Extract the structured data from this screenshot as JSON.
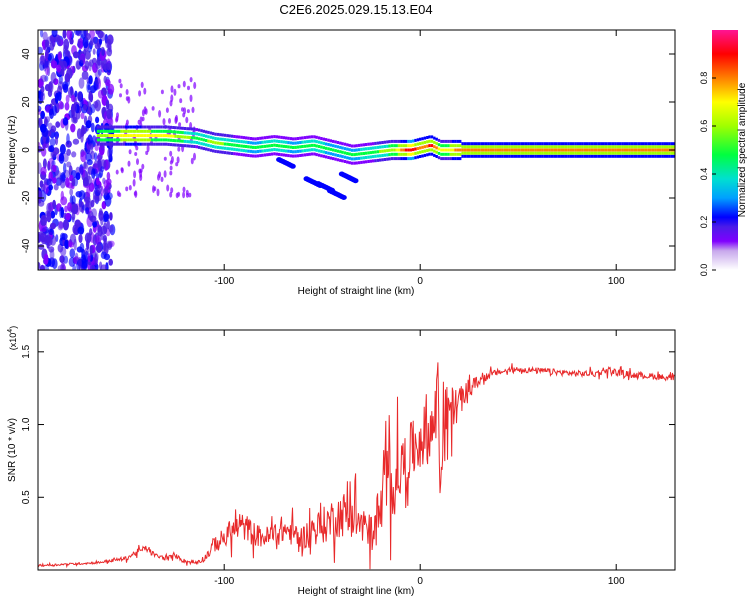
{
  "title": "C2E6.2025.029.15.13.E04",
  "colors": {
    "snr_line": "#e8292a",
    "colormap": [
      "#ffffff",
      "#c8a8ec",
      "#8000ff",
      "#4b1ce8",
      "#0000ff",
      "#00a0ff",
      "#00e0d0",
      "#00ff40",
      "#a0ff00",
      "#ffff00",
      "#ff8000",
      "#ff0000",
      "#ff1493"
    ]
  },
  "chart_data": [
    {
      "type": "heatmap",
      "xlabel": "Height of straight line (km)",
      "ylabel": "Frequency (Hz)",
      "xlim": [
        -195,
        130
      ],
      "ylim": [
        -50,
        50
      ],
      "xticks": [
        {
          "value": -100,
          "label": "-100"
        },
        {
          "value": 0,
          "label": "0"
        },
        {
          "value": 100,
          "label": "100"
        }
      ],
      "yticks": [
        {
          "value": -40,
          "label": "-40"
        },
        {
          "value": -20,
          "label": "-20"
        },
        {
          "value": 0,
          "label": "0"
        },
        {
          "value": 20,
          "label": "20"
        },
        {
          "value": 40,
          "label": "40"
        }
      ],
      "colorbar": {
        "label": "Normalized spectral amplitude",
        "range": [
          0,
          1
        ],
        "ticks": [
          {
            "value": 0.0,
            "label": "0.0"
          },
          {
            "value": 0.2,
            "label": "0.2"
          },
          {
            "value": 0.4,
            "label": "0.4"
          },
          {
            "value": 0.6,
            "label": "0.6"
          },
          {
            "value": 0.8,
            "label": "0.8"
          }
        ]
      },
      "ridge": {
        "x": [
          -165,
          -150,
          -130,
          -115,
          -105,
          -95,
          -85,
          -75,
          -65,
          -55,
          -45,
          -35,
          -25,
          -15,
          -5,
          0,
          5,
          10,
          20,
          40,
          60,
          80,
          100,
          120,
          130
        ],
        "freq": [
          6,
          6,
          6,
          5,
          3,
          2,
          1,
          2,
          1,
          2,
          0,
          -2,
          -1,
          0,
          0,
          1,
          2,
          0,
          0,
          0,
          0,
          0,
          0,
          0,
          0
        ],
        "amplitude": [
          0.55,
          0.7,
          0.65,
          0.45,
          0.5,
          0.45,
          0.4,
          0.45,
          0.4,
          0.45,
          0.4,
          0.4,
          0.45,
          0.55,
          0.9,
          0.7,
          0.85,
          0.6,
          0.75,
          0.75,
          0.75,
          0.75,
          0.75,
          0.75,
          0.75
        ]
      }
    },
    {
      "type": "line",
      "xlabel": "Height of straight line (km)",
      "ylabel": "SNR (10 * v/v)",
      "scale_label": "(x10",
      "scale_exponent": "4",
      "xlim": [
        -195,
        130
      ],
      "ylim": [
        0,
        1.65
      ],
      "xticks": [
        {
          "value": -100,
          "label": "-100"
        },
        {
          "value": 0,
          "label": "0"
        },
        {
          "value": 100,
          "label": "100"
        }
      ],
      "yticks": [
        {
          "value": 0.5,
          "label": "0.5"
        },
        {
          "value": 1.0,
          "label": "1.0"
        },
        {
          "value": 1.5,
          "label": "1.5"
        }
      ],
      "series": [
        {
          "x": [
            -195,
            -180,
            -165,
            -150,
            -145,
            -140,
            -135,
            -130,
            -125,
            -120,
            -115,
            -110,
            -105,
            -100,
            -95,
            -90,
            -85,
            -80,
            -75,
            -70,
            -65,
            -60,
            -55,
            -50,
            -45,
            -40,
            -35,
            -30,
            -25,
            -20,
            -18,
            -15,
            -12,
            -10,
            -5,
            0,
            5,
            8,
            9,
            10,
            12,
            15,
            20,
            25,
            30,
            35,
            40,
            50,
            60,
            70,
            80,
            90,
            95,
            100,
            110,
            120,
            130
          ],
          "y": [
            0.03,
            0.04,
            0.05,
            0.08,
            0.12,
            0.15,
            0.1,
            0.08,
            0.1,
            0.06,
            0.05,
            0.08,
            0.18,
            0.22,
            0.28,
            0.3,
            0.25,
            0.22,
            0.24,
            0.28,
            0.25,
            0.22,
            0.28,
            0.3,
            0.35,
            0.38,
            0.4,
            0.3,
            0.25,
            0.4,
            0.6,
            0.55,
            0.65,
            0.7,
            0.8,
            0.9,
            0.95,
            1.05,
            1.5,
            0.5,
            1.05,
            1.1,
            1.15,
            1.25,
            1.3,
            1.34,
            1.36,
            1.38,
            1.37,
            1.36,
            1.35,
            1.35,
            1.38,
            1.36,
            1.34,
            1.33,
            1.32
          ],
          "noise": [
            0.01,
            0.01,
            0.01,
            0.02,
            0.03,
            0.03,
            0.02,
            0.02,
            0.02,
            0.02,
            0.02,
            0.03,
            0.08,
            0.1,
            0.12,
            0.14,
            0.12,
            0.1,
            0.12,
            0.14,
            0.12,
            0.12,
            0.15,
            0.18,
            0.2,
            0.22,
            0.25,
            0.22,
            0.18,
            0.35,
            0.45,
            0.35,
            0.35,
            0.3,
            0.3,
            0.3,
            0.3,
            0.35,
            0.1,
            0.1,
            0.3,
            0.25,
            0.15,
            0.08,
            0.05,
            0.04,
            0.03,
            0.03,
            0.03,
            0.03,
            0.03,
            0.03,
            0.04,
            0.03,
            0.03,
            0.03,
            0.03
          ]
        }
      ]
    }
  ]
}
